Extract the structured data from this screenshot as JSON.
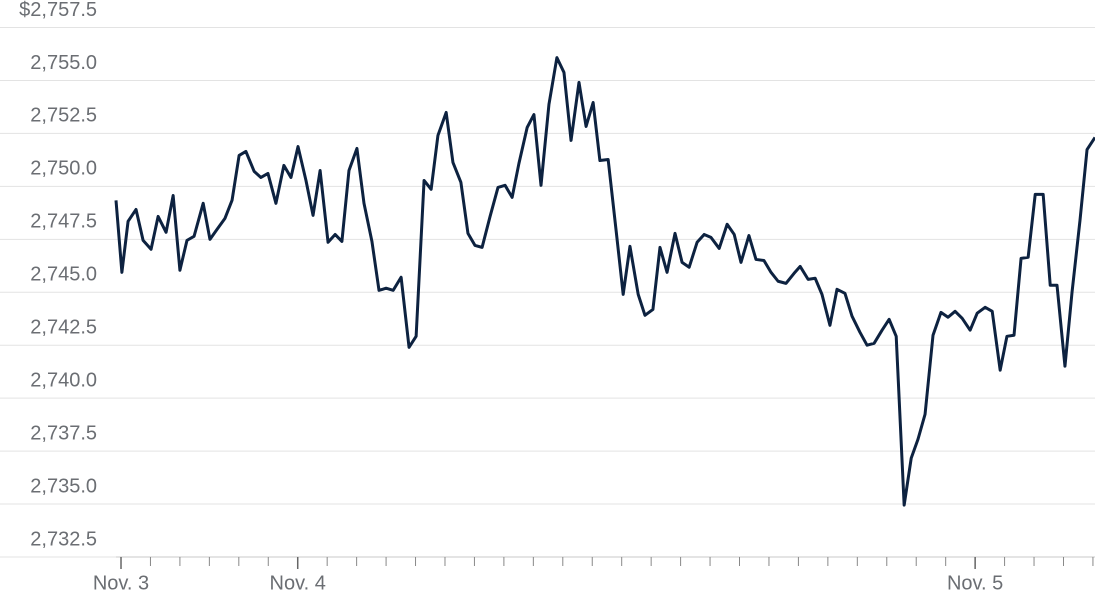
{
  "chart_data": {
    "type": "line",
    "x": [
      -0.17,
      0.03,
      0.24,
      0.51,
      0.75,
      1.02,
      1.26,
      1.53,
      1.77,
      2.0,
      2.24,
      2.48,
      2.79,
      3.02,
      3.26,
      3.53,
      3.77,
      4.01,
      4.24,
      4.52,
      4.75,
      4.99,
      5.26,
      5.53,
      5.77,
      6.01,
      6.28,
      6.52,
      6.76,
      7.03,
      7.27,
      7.5,
      7.74,
      8.01,
      8.25,
      8.52,
      8.76,
      9.0,
      9.24,
      9.51,
      9.78,
      10.02,
      10.29,
      10.53,
      10.76,
      11.04,
      11.27,
      11.54,
      11.78,
      12.02,
      12.26,
      12.53,
      12.8,
      13.04,
      13.28,
      13.51,
      13.79,
      14.02,
      14.26,
      14.53,
      14.8,
      15.04,
      15.28,
      15.55,
      15.79,
      16.03,
      16.26,
      16.54,
      16.81,
      17.05,
      17.28,
      17.56,
      17.79,
      18.06,
      18.3,
      18.54,
      18.81,
      19.05,
      19.29,
      19.56,
      19.8,
      20.03,
      20.31,
      20.58,
      20.82,
      21.05,
      21.32,
      21.56,
      21.83,
      22.07,
      22.31,
      22.58,
      22.85,
      23.06,
      23.33,
      23.57,
      23.8,
      24.07,
      24.31,
      24.58,
      24.82,
      25.09,
      25.33,
      25.57,
      25.84,
      26.08,
      26.32,
      26.59,
      26.83,
      27.06,
      27.3,
      27.57,
      27.84,
      28.08,
      28.32,
      28.56,
      28.83,
      29.07,
      29.34,
      29.58,
      29.85,
      30.08,
      30.32,
      30.56,
      30.8,
      31.04,
      31.31,
      31.55,
      31.78,
      32.05,
      32.29,
      32.56,
      32.8,
      33.07
    ],
    "series": [
      {
        "color": "#0d2240",
        "values": [
          2749.34,
          2745.94,
          2748.35,
          2748.91,
          2747.45,
          2747.03,
          2748.58,
          2747.83,
          2749.57,
          2746.04,
          2747.45,
          2747.64,
          2749.2,
          2747.5,
          2747.97,
          2748.49,
          2749.34,
          2751.46,
          2751.65,
          2750.71,
          2750.42,
          2750.61,
          2749.2,
          2750.99,
          2750.42,
          2751.88,
          2750.28,
          2748.63,
          2750.75,
          2747.36,
          2747.73,
          2747.4,
          2750.75,
          2751.79,
          2749.2,
          2747.4,
          2745.09,
          2745.19,
          2745.09,
          2745.71,
          2742.4,
          2742.92,
          2750.28,
          2749.86,
          2752.4,
          2753.49,
          2751.13,
          2750.19,
          2747.78,
          2747.21,
          2747.12,
          2748.58,
          2749.95,
          2750.05,
          2749.48,
          2751.08,
          2752.78,
          2753.39,
          2750.05,
          2753.87,
          2756.08,
          2755.38,
          2752.17,
          2754.91,
          2752.83,
          2753.96,
          2751.22,
          2751.27,
          2747.92,
          2744.9,
          2747.17,
          2744.9,
          2743.91,
          2744.19,
          2747.12,
          2745.94,
          2747.78,
          2746.41,
          2746.18,
          2747.36,
          2747.73,
          2747.59,
          2747.07,
          2748.21,
          2747.73,
          2746.41,
          2747.68,
          2746.55,
          2746.5,
          2745.94,
          2745.52,
          2745.42,
          2745.89,
          2746.22,
          2745.61,
          2745.66,
          2744.9,
          2743.44,
          2745.14,
          2744.95,
          2743.87,
          2743.11,
          2742.5,
          2742.59,
          2743.21,
          2743.72,
          2742.92,
          2734.95,
          2737.17,
          2738.06,
          2739.24,
          2742.97,
          2744.05,
          2743.82,
          2744.1,
          2743.77,
          2743.21,
          2744.01,
          2744.29,
          2744.1,
          2741.32,
          2742.92,
          2742.97,
          2746.6,
          2746.65,
          2749.62,
          2749.62,
          2745.33,
          2745.33,
          2741.51,
          2745.0,
          2748.39,
          2751.74,
          2752.31
        ]
      }
    ],
    "xlim": [
      -0.17,
      33.07
    ],
    "xticks": [
      {
        "value": 0,
        "label": "Nov. 3"
      },
      {
        "value": 6,
        "label": "Nov. 4"
      },
      {
        "value": 29,
        "label": "Nov. 5"
      }
    ],
    "x_minor_ticks": [
      0,
      1,
      2,
      3,
      4,
      5,
      6,
      7,
      8,
      9,
      10,
      11,
      12,
      13,
      14,
      15,
      16,
      17,
      18,
      19,
      20,
      21,
      22,
      23,
      24,
      25,
      26,
      27,
      28,
      29,
      30,
      31,
      32,
      33
    ],
    "ylim": [
      2732.5,
      2758.8
    ],
    "yticks": [
      {
        "value": 2757.5,
        "label": "$2,757.5"
      },
      {
        "value": 2755,
        "label": "2,755.0"
      },
      {
        "value": 2752.5,
        "label": "2,752.5"
      },
      {
        "value": 2750,
        "label": "2,750.0"
      },
      {
        "value": 2747.5,
        "label": "2,747.5"
      },
      {
        "value": 2745,
        "label": "2,745.0"
      },
      {
        "value": 2742.5,
        "label": "2,742.5"
      },
      {
        "value": 2740,
        "label": "2,740.0"
      },
      {
        "value": 2737.5,
        "label": "2,737.5"
      },
      {
        "value": 2735,
        "label": "2,735.0"
      },
      {
        "value": 2732.5,
        "label": "2,732.5"
      }
    ],
    "grid": true
  }
}
